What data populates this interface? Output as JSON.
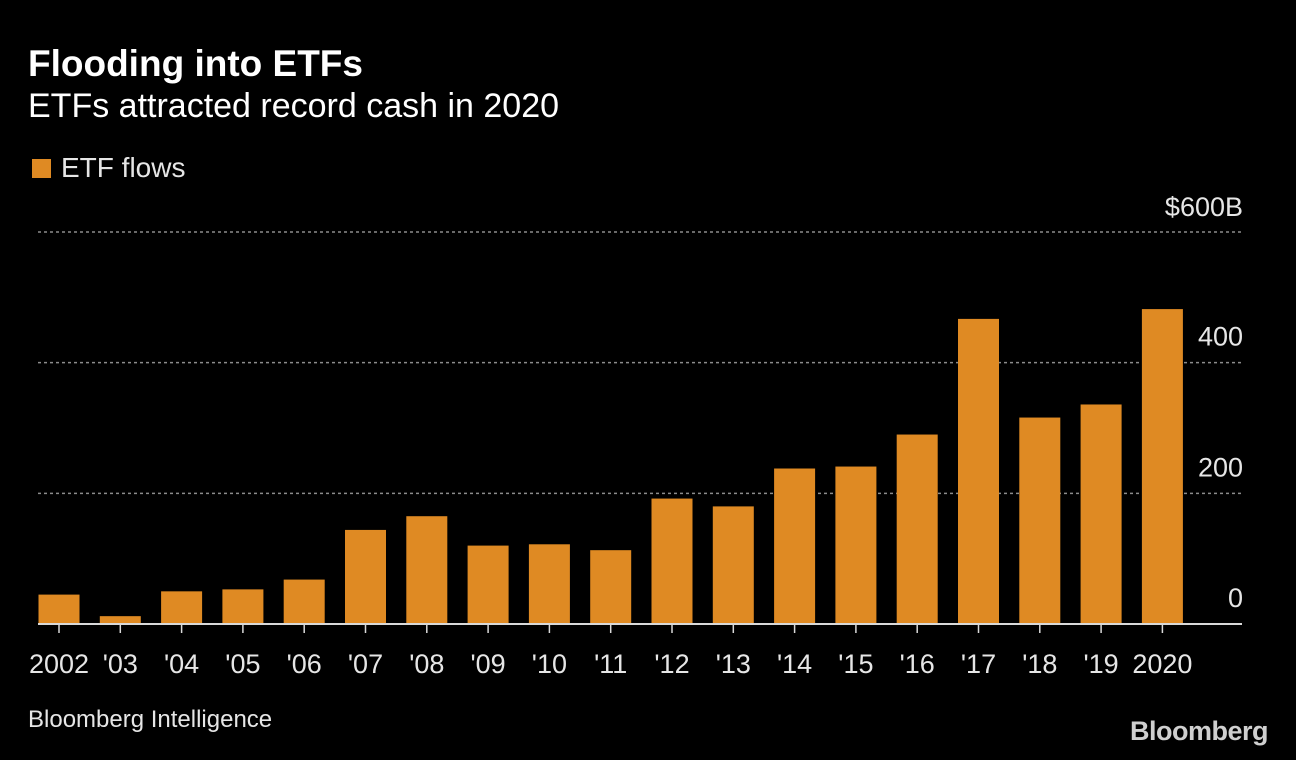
{
  "colors": {
    "background": "#000000",
    "bar": "#df8a23",
    "grid": "#8c8c8c",
    "axis": "#d9d9d9",
    "text": "#e6e6e6"
  },
  "header": {
    "title": "Flooding into ETFs",
    "subtitle": "ETFs attracted record cash in 2020"
  },
  "footer": {
    "source": "Bloomberg Intelligence",
    "brand": "Bloomberg"
  },
  "chart_data": {
    "type": "bar",
    "title": "Flooding into ETFs",
    "subtitle": "ETFs attracted record cash in 2020",
    "xlabel": "",
    "ylabel": "",
    "unit": "USD billions",
    "legend": {
      "placement": "top-left",
      "entries": [
        "ETF flows"
      ]
    },
    "grid": true,
    "ylim": [
      0,
      600
    ],
    "yticks": [
      0,
      200,
      400,
      600
    ],
    "ytick_labels": [
      "0",
      "200",
      "400",
      "$600B"
    ],
    "categories": [
      "2002",
      "'03",
      "'04",
      "'05",
      "'06",
      "'07",
      "'08",
      "'09",
      "'10",
      "'11",
      "'12",
      "'13",
      "'14",
      "'15",
      "'16",
      "'17",
      "'18",
      "'19",
      "2020"
    ],
    "series": [
      {
        "name": "ETF flows",
        "values": [
          45,
          12,
          50,
          53,
          68,
          144,
          165,
          120,
          122,
          113,
          192,
          180,
          238,
          241,
          290,
          467,
          316,
          336,
          482
        ]
      }
    ]
  }
}
